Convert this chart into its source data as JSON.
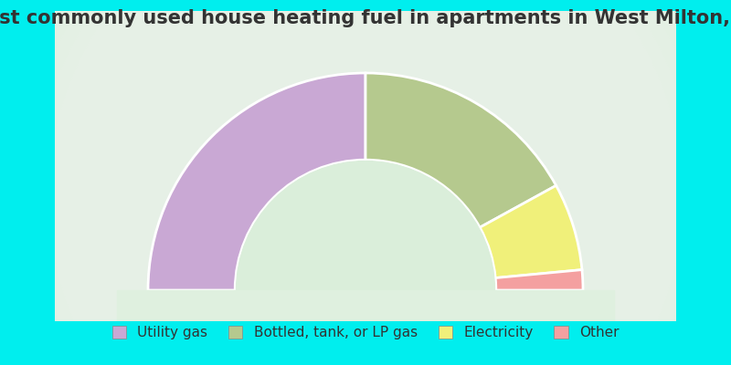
{
  "title": "Most commonly used house heating fuel in apartments in West Milton, PA",
  "segments": [
    {
      "label": "Utility gas",
      "value": 50.0,
      "color": "#C9A8D4"
    },
    {
      "label": "Bottled, tank, or LP gas",
      "value": 34.0,
      "color": "#B5C98E"
    },
    {
      "label": "Electricity",
      "value": 13.0,
      "color": "#F0F07A"
    },
    {
      "label": "Other",
      "value": 3.0,
      "color": "#F4A0A0"
    }
  ],
  "background_color": "#00EEEE",
  "title_color": "#333333",
  "title_fontsize": 15,
  "legend_fontsize": 11
}
